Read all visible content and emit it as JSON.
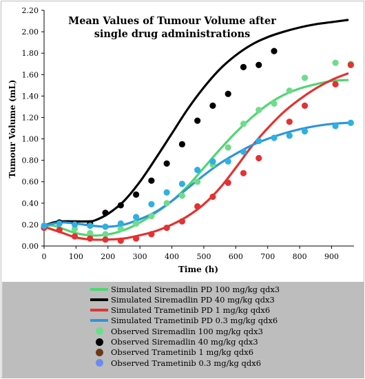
{
  "chart_data": {
    "type": "line",
    "title_lines": [
      "Mean Values of Tumour Volume after",
      "single drug administrations"
    ],
    "xlabel": "Time (h)",
    "ylabel": "Tumour Volume (mL)",
    "xlim": [
      0,
      970
    ],
    "ylim": [
      0,
      2.2
    ],
    "xticks": [
      0,
      100,
      200,
      300,
      400,
      500,
      600,
      700,
      800,
      900
    ],
    "yticks": [
      0.0,
      0.2,
      0.4,
      0.6,
      0.8,
      1.0,
      1.2,
      1.4,
      1.6,
      1.8,
      2.0,
      2.2
    ],
    "ytick_labels": [
      "0.00",
      "0.20",
      "0.40",
      "0.60",
      "0.80",
      "1.00",
      "1.20",
      "1.40",
      "1.60",
      "1.80",
      "2.00",
      "2.20"
    ],
    "grid": false,
    "legend_position": "bottom",
    "simulated": [
      {
        "name": "Simulated Siremadlin PD 100 mg/kg qdx3",
        "color": "#4fd670",
        "x": [
          0,
          30,
          60,
          100,
          140,
          180,
          220,
          260,
          300,
          350,
          400,
          450,
          500,
          550,
          600,
          650,
          700,
          750,
          800,
          850,
          900,
          950
        ],
        "y": [
          0.19,
          0.19,
          0.16,
          0.12,
          0.1,
          0.1,
          0.12,
          0.16,
          0.22,
          0.31,
          0.42,
          0.56,
          0.73,
          0.9,
          1.06,
          1.2,
          1.32,
          1.41,
          1.47,
          1.51,
          1.54,
          1.55
        ]
      },
      {
        "name": "Simulated Siremadlin PD 40 mg/kg qdx3",
        "color": "#000000",
        "x": [
          0,
          30,
          60,
          100,
          140,
          160,
          200,
          250,
          300,
          350,
          400,
          450,
          500,
          550,
          600,
          650,
          700,
          750,
          800,
          850,
          900,
          950
        ],
        "y": [
          0.19,
          0.22,
          0.23,
          0.23,
          0.23,
          0.24,
          0.3,
          0.42,
          0.6,
          0.82,
          1.05,
          1.28,
          1.48,
          1.65,
          1.78,
          1.88,
          1.95,
          2.0,
          2.04,
          2.07,
          2.09,
          2.11
        ]
      },
      {
        "name": "Simulated Trametinib PD 1 mg/kg qdx6",
        "color": "#e53131",
        "x": [
          0,
          30,
          60,
          100,
          150,
          200,
          250,
          300,
          350,
          400,
          450,
          500,
          550,
          600,
          650,
          700,
          750,
          800,
          850,
          900,
          950
        ],
        "y": [
          0.18,
          0.15,
          0.12,
          0.08,
          0.06,
          0.06,
          0.07,
          0.1,
          0.14,
          0.2,
          0.28,
          0.39,
          0.54,
          0.73,
          0.93,
          1.1,
          1.25,
          1.37,
          1.47,
          1.55,
          1.61
        ]
      },
      {
        "name": "Simulated Trametinib PD 0.3 mg/kg qdx6",
        "color": "#2e96d6",
        "x": [
          0,
          30,
          60,
          100,
          150,
          200,
          250,
          300,
          350,
          400,
          450,
          500,
          550,
          600,
          650,
          700,
          750,
          800,
          850,
          900,
          950
        ],
        "y": [
          0.19,
          0.21,
          0.22,
          0.21,
          0.19,
          0.18,
          0.2,
          0.25,
          0.32,
          0.42,
          0.54,
          0.66,
          0.77,
          0.86,
          0.94,
          1.0,
          1.05,
          1.09,
          1.12,
          1.14,
          1.15
        ]
      }
    ],
    "observed": [
      {
        "name": "Observed Siremadlin 100 mg/kg qdx3",
        "color": "#6fdc8c",
        "x": [
          0,
          48,
          96,
          144,
          192,
          240,
          288,
          336,
          384,
          432,
          480,
          528,
          576,
          624,
          672,
          720,
          768,
          816,
          912,
          960
        ],
        "y": [
          0.17,
          0.21,
          0.16,
          0.12,
          0.11,
          0.16,
          0.21,
          0.28,
          0.4,
          0.47,
          0.6,
          0.76,
          0.92,
          1.14,
          1.27,
          1.33,
          1.45,
          1.57,
          1.71,
          1.7
        ]
      },
      {
        "name": "Observed Siremadlin 40 mg/kg qdx3",
        "color": "#000000",
        "x": [
          0,
          48,
          96,
          144,
          192,
          240,
          288,
          336,
          384,
          432,
          480,
          528,
          576,
          624,
          672,
          720
        ],
        "y": [
          0.18,
          0.22,
          0.21,
          0.21,
          0.31,
          0.38,
          0.48,
          0.61,
          0.77,
          0.95,
          1.17,
          1.31,
          1.42,
          1.67,
          1.69,
          1.82
        ]
      },
      {
        "name": "Observed Trametinib 1 mg/kg qdx6",
        "color": "#e53131",
        "legend_color": "#6b3a16",
        "x": [
          0,
          48,
          96,
          144,
          192,
          240,
          288,
          336,
          384,
          432,
          480,
          528,
          576,
          624,
          672,
          768,
          816,
          912,
          960
        ],
        "y": [
          0.17,
          0.15,
          0.09,
          0.07,
          0.06,
          0.05,
          0.07,
          0.11,
          0.17,
          0.23,
          0.37,
          0.46,
          0.59,
          0.68,
          0.82,
          1.16,
          1.31,
          1.51,
          1.69
        ]
      },
      {
        "name": "Observed Trametinib 0.3 mg/kg qdx6",
        "color": "#2db0e6",
        "legend_color": "#6b8bf0",
        "x": [
          0,
          48,
          96,
          144,
          192,
          240,
          288,
          336,
          384,
          432,
          480,
          528,
          576,
          624,
          672,
          720,
          768,
          816,
          912,
          960
        ],
        "y": [
          0.19,
          0.21,
          0.2,
          0.19,
          0.18,
          0.21,
          0.27,
          0.39,
          0.5,
          0.58,
          0.71,
          0.79,
          0.79,
          0.88,
          0.98,
          1.01,
          1.03,
          1.07,
          1.12,
          1.15
        ]
      }
    ]
  }
}
